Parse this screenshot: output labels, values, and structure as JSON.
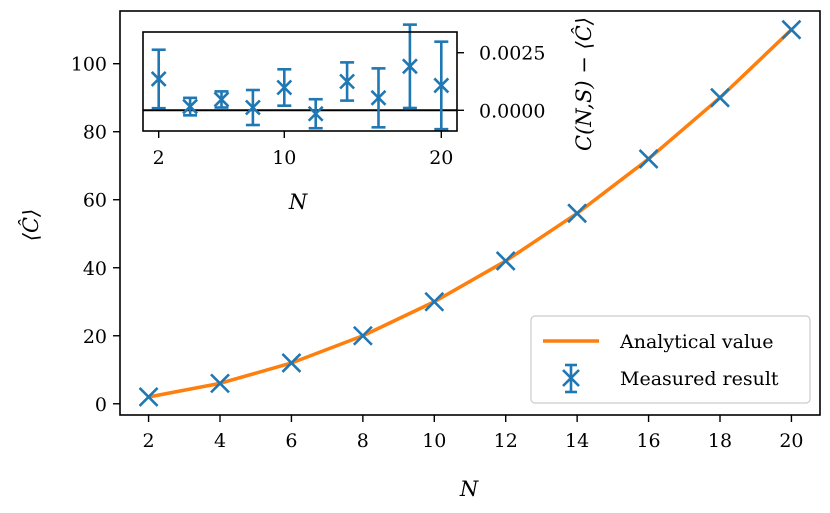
{
  "chart_data": [
    {
      "type": "line",
      "title": "",
      "xlabel": "N",
      "ylabel": "⟨Ĉ⟩",
      "xlim": [
        1.2,
        20.8
      ],
      "ylim": [
        -3.3,
        115.5
      ],
      "grid": false,
      "xticks": [
        2,
        4,
        6,
        8,
        10,
        12,
        14,
        16,
        18,
        20
      ],
      "yticks": [
        0,
        20,
        40,
        60,
        80,
        100
      ],
      "x": [
        2,
        4,
        6,
        8,
        10,
        12,
        14,
        16,
        18,
        20
      ],
      "series": [
        {
          "name": "Analytical value",
          "kind": "line",
          "color": "#ff7f0e",
          "values": [
            2,
            6,
            12,
            20,
            30,
            42,
            56,
            72,
            90,
            110
          ]
        },
        {
          "name": "Measured result",
          "kind": "errorbar",
          "color": "#1f77b4",
          "values": [
            2,
            6,
            12,
            20,
            30,
            42,
            56,
            72,
            90,
            110
          ]
        }
      ],
      "legend": {
        "placement": "bottom-right",
        "entries": [
          "Analytical value",
          "Measured result"
        ]
      }
    },
    {
      "type": "scatter",
      "title": "",
      "xlabel": "N",
      "ylabel": "C(N,S) − ⟨Ĉ⟩",
      "xlim": [
        1.0,
        21.0
      ],
      "ylim": [
        -0.0009,
        0.0034
      ],
      "xticks": [
        2,
        10,
        20
      ],
      "yticks": [
        0.0,
        0.0025
      ],
      "ytick_labels": [
        "0.0000",
        "0.0025"
      ],
      "reference_line": 0,
      "x": [
        2,
        4,
        6,
        8,
        10,
        12,
        14,
        16,
        18,
        20
      ],
      "series": [
        {
          "name": "Measured result",
          "color": "#1f77b4",
          "values": [
            0.00136,
            0.00016,
            0.00047,
            0.00012,
            0.00099,
            -0.00015,
            0.00125,
            0.00054,
            0.00191,
            0.00108
          ],
          "errors": [
            0.00127,
            0.00038,
            0.00035,
            0.00076,
            0.00079,
            0.00063,
            0.00083,
            0.00128,
            0.00181,
            0.0019
          ]
        }
      ]
    }
  ]
}
